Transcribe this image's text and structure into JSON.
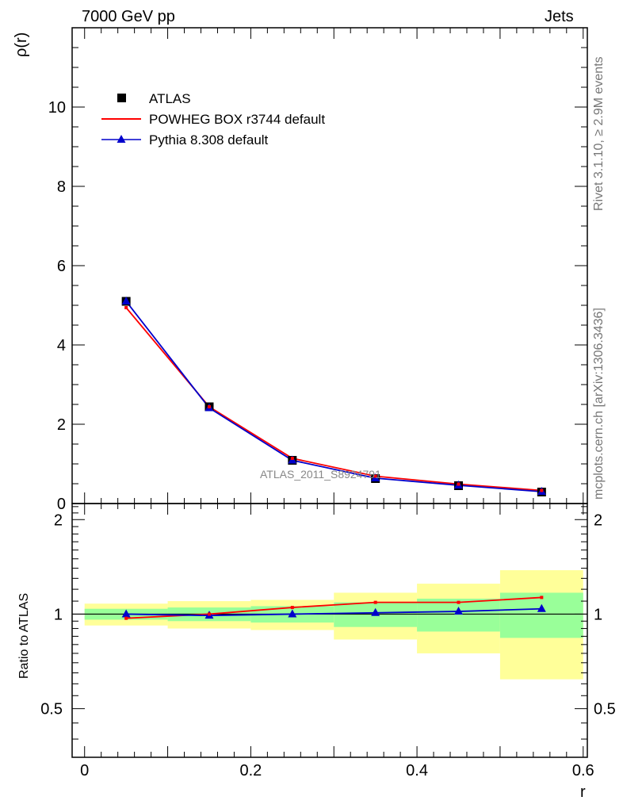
{
  "header": {
    "left": "7000 GeV pp",
    "right": "Jets"
  },
  "side_labels": {
    "rivet": "Rivet 3.1.10, ≥ 2.9M events",
    "site": "mcplots.cern.ch [arXiv:1306.3436]"
  },
  "watermark": "ATLAS_2011_S8924791",
  "colors": {
    "data": "#000000",
    "powheg": "#ff0000",
    "pythia": "#0000cc",
    "band_inner": "#99ff99",
    "band_outer": "#ffff99"
  },
  "chart_data": [
    {
      "type": "line",
      "ylabel": "ρ(r)",
      "xlim": [
        -0.015,
        0.605
      ],
      "ylim": [
        0,
        12
      ],
      "yticks": [
        0,
        2,
        4,
        6,
        8,
        10
      ],
      "ytick_labels": [
        "0",
        "2",
        "4",
        "6",
        "8",
        "10"
      ],
      "x": [
        0.05,
        0.15,
        0.25,
        0.35,
        0.45,
        0.55
      ],
      "legend": [
        "ATLAS",
        "POWHEG BOX r3744 default",
        "Pythia 8.308 default"
      ],
      "series": [
        {
          "name": "ATLAS",
          "values": [
            5.1,
            2.44,
            1.09,
            0.63,
            0.45,
            0.29
          ]
        },
        {
          "name": "POWHEG BOX r3744 default",
          "values": [
            4.94,
            2.44,
            1.14,
            0.69,
            0.49,
            0.33
          ]
        },
        {
          "name": "Pythia 8.308 default",
          "values": [
            5.1,
            2.41,
            1.09,
            0.64,
            0.46,
            0.3
          ]
        }
      ]
    },
    {
      "type": "line",
      "ylabel": "Ratio to ATLAS",
      "xlabel": "r",
      "xlim": [
        -0.015,
        0.605
      ],
      "ylim": [
        0.35,
        2.25
      ],
      "xticks": [
        0,
        0.2,
        0.4,
        0.6
      ],
      "xtick_labels": [
        "0",
        "0.2",
        "0.4",
        "0.6"
      ],
      "yticks": [
        0.5,
        1,
        2
      ],
      "ytick_labels": [
        "0.5",
        "1",
        "2"
      ],
      "x": [
        0.05,
        0.15,
        0.25,
        0.35,
        0.45,
        0.55
      ],
      "bins": [
        [
          0,
          0.1
        ],
        [
          0.1,
          0.2
        ],
        [
          0.2,
          0.3
        ],
        [
          0.3,
          0.4
        ],
        [
          0.4,
          0.5
        ],
        [
          0.5,
          0.6
        ]
      ],
      "band_inner": [
        [
          0.96,
          1.04
        ],
        [
          0.95,
          1.05
        ],
        [
          0.94,
          1.06
        ],
        [
          0.91,
          1.09
        ],
        [
          0.88,
          1.12
        ],
        [
          0.84,
          1.17
        ]
      ],
      "band_outer": [
        [
          0.92,
          1.08
        ],
        [
          0.9,
          1.1
        ],
        [
          0.89,
          1.11
        ],
        [
          0.83,
          1.17
        ],
        [
          0.75,
          1.25
        ],
        [
          0.62,
          1.38
        ]
      ],
      "series": [
        {
          "name": "POWHEG BOX r3744 default",
          "values": [
            0.97,
            1.0,
            1.05,
            1.09,
            1.09,
            1.13
          ]
        },
        {
          "name": "Pythia 8.308 default",
          "values": [
            1.0,
            0.99,
            1.0,
            1.01,
            1.02,
            1.04
          ]
        }
      ]
    }
  ]
}
